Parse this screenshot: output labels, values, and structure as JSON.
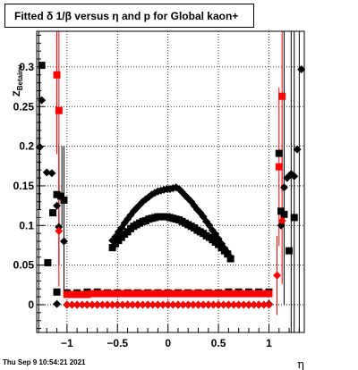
{
  "chart_data": {
    "type": "scatter",
    "title": "Fitted δ 1/β versus η and p for Global kaon+",
    "xlabel": "η",
    "ylabel": "Z_{Betainv}",
    "xlim": [
      -1.3,
      1.35
    ],
    "ylim": [
      -0.035,
      0.345
    ],
    "x_ticks": [
      -1,
      -0.5,
      0,
      0.5,
      1
    ],
    "x_tick_labels": [
      "−1",
      "−0.5",
      "0",
      "0.5",
      "1"
    ],
    "y_ticks": [
      0,
      0.05,
      0.1,
      0.15,
      0.2,
      0.25,
      0.3
    ],
    "y_tick_labels": [
      "0",
      "0.05",
      "0.1",
      "0.15",
      "0.2",
      "0.25",
      "0.3"
    ],
    "grid": true,
    "datestamp": "Thu Sep  9 10:54:21 2021",
    "series": [
      {
        "marker": "square",
        "color": "#000000",
        "points": [
          [
            -1.25,
            0.302
          ],
          [
            -1.19,
            0.053
          ],
          [
            -1.14,
            0.116
          ],
          [
            -1.1,
            0.139
          ],
          [
            -1.06,
            0.137
          ],
          [
            -1.03,
            0.132
          ],
          [
            -0.55,
            0.072
          ],
          [
            -0.52,
            0.077
          ],
          [
            -0.49,
            0.081
          ],
          [
            -0.46,
            0.085
          ],
          [
            -0.43,
            0.089
          ],
          [
            -0.4,
            0.092
          ],
          [
            -0.37,
            0.096
          ],
          [
            -0.34,
            0.099
          ],
          [
            -0.31,
            0.101
          ],
          [
            -0.28,
            0.103
          ],
          [
            -0.25,
            0.105
          ],
          [
            -0.22,
            0.106
          ],
          [
            -0.19,
            0.108
          ],
          [
            -0.16,
            0.109
          ],
          [
            -0.13,
            0.11
          ],
          [
            -0.1,
            0.111
          ],
          [
            -0.07,
            0.111
          ],
          [
            -0.04,
            0.111
          ],
          [
            -0.01,
            0.111
          ],
          [
            0.02,
            0.11
          ],
          [
            0.05,
            0.109
          ],
          [
            0.08,
            0.108
          ],
          [
            0.11,
            0.107
          ],
          [
            0.14,
            0.105
          ],
          [
            0.17,
            0.103
          ],
          [
            0.2,
            0.101
          ],
          [
            0.23,
            0.099
          ],
          [
            0.26,
            0.097
          ],
          [
            0.29,
            0.094
          ],
          [
            0.32,
            0.092
          ],
          [
            0.35,
            0.09
          ],
          [
            0.38,
            0.087
          ],
          [
            0.41,
            0.085
          ],
          [
            0.44,
            0.082
          ],
          [
            0.47,
            0.079
          ],
          [
            0.5,
            0.076
          ],
          [
            0.53,
            0.072
          ],
          [
            0.56,
            0.068
          ],
          [
            0.59,
            0.064
          ],
          [
            0.62,
            0.058
          ],
          [
            -1.1,
            0.016
          ],
          [
            -1.0,
            0.015
          ],
          [
            -0.9,
            0.015
          ],
          [
            -0.8,
            0.016
          ],
          [
            -0.7,
            0.016
          ],
          [
            -0.6,
            0.015
          ],
          [
            -0.5,
            0.015
          ],
          [
            -0.4,
            0.015
          ],
          [
            -0.3,
            0.015
          ],
          [
            -0.2,
            0.015
          ],
          [
            -0.1,
            0.015
          ],
          [
            0.0,
            0.015
          ],
          [
            0.1,
            0.015
          ],
          [
            0.2,
            0.015
          ],
          [
            0.3,
            0.015
          ],
          [
            0.4,
            0.015
          ],
          [
            0.5,
            0.015
          ],
          [
            0.6,
            0.016
          ],
          [
            0.7,
            0.016
          ],
          [
            0.8,
            0.016
          ],
          [
            0.9,
            0.016
          ],
          [
            1.0,
            0.016
          ],
          [
            1.1,
            0.191
          ],
          [
            1.15,
            0.114
          ],
          [
            1.2,
            0.068
          ],
          [
            1.25,
            0.11
          ],
          [
            1.12,
            0.118
          ]
        ]
      },
      {
        "marker": "diamond",
        "color": "#000000",
        "points": [
          [
            -1.27,
            0.199
          ],
          [
            -1.25,
            0.258
          ],
          [
            -1.2,
            0.167
          ],
          [
            -1.15,
            0.166
          ],
          [
            -1.1,
            0.125
          ],
          [
            -1.08,
            0.098
          ],
          [
            -1.03,
            0.08
          ],
          [
            -0.55,
            0.081
          ],
          [
            -0.52,
            0.086
          ],
          [
            -0.49,
            0.092
          ],
          [
            -0.46,
            0.097
          ],
          [
            -0.43,
            0.103
          ],
          [
            -0.4,
            0.108
          ],
          [
            -0.37,
            0.113
          ],
          [
            -0.34,
            0.118
          ],
          [
            -0.31,
            0.122
          ],
          [
            -0.28,
            0.126
          ],
          [
            -0.25,
            0.13
          ],
          [
            -0.22,
            0.133
          ],
          [
            -0.19,
            0.136
          ],
          [
            -0.16,
            0.139
          ],
          [
            -0.13,
            0.141
          ],
          [
            -0.1,
            0.143
          ],
          [
            -0.07,
            0.144
          ],
          [
            -0.04,
            0.145
          ],
          [
            -0.01,
            0.146
          ],
          [
            0.02,
            0.146
          ],
          [
            0.05,
            0.147
          ],
          [
            0.08,
            0.148
          ],
          [
            0.11,
            0.146
          ],
          [
            0.14,
            0.142
          ],
          [
            0.17,
            0.138
          ],
          [
            0.2,
            0.134
          ],
          [
            0.23,
            0.13
          ],
          [
            0.26,
            0.125
          ],
          [
            0.29,
            0.12
          ],
          [
            0.32,
            0.116
          ],
          [
            0.35,
            0.111
          ],
          [
            0.38,
            0.105
          ],
          [
            0.41,
            0.1
          ],
          [
            0.44,
            0.094
          ],
          [
            0.47,
            0.089
          ],
          [
            0.5,
            0.083
          ],
          [
            0.53,
            0.077
          ],
          [
            0.56,
            0.071
          ],
          [
            0.59,
            0.066
          ],
          [
            0.62,
            0.06
          ],
          [
            -1.1,
            0.001
          ],
          [
            -1.0,
            0.0
          ],
          [
            -0.9,
            0.0
          ],
          [
            -0.8,
            0.0
          ],
          [
            -0.7,
            0.0
          ],
          [
            -0.6,
            0.0
          ],
          [
            -0.5,
            0.0
          ],
          [
            -0.4,
            0.0
          ],
          [
            -0.3,
            0.0
          ],
          [
            -0.2,
            0.0
          ],
          [
            -0.1,
            0.0
          ],
          [
            0.0,
            0.0
          ],
          [
            0.1,
            0.0
          ],
          [
            0.2,
            0.0
          ],
          [
            0.3,
            0.0
          ],
          [
            0.4,
            0.0
          ],
          [
            0.5,
            0.0
          ],
          [
            0.6,
            0.0
          ],
          [
            0.7,
            0.0
          ],
          [
            0.8,
            0.0
          ],
          [
            0.9,
            0.0
          ],
          [
            1.0,
            0.001
          ],
          [
            1.15,
            0.148
          ],
          [
            1.18,
            0.16
          ],
          [
            1.22,
            0.165
          ],
          [
            1.25,
            0.162
          ],
          [
            1.28,
            0.196
          ],
          [
            1.32,
            0.297
          ],
          [
            1.12,
            0.1
          ]
        ]
      },
      {
        "marker": "square",
        "color": "#ff0000",
        "err_color": "#ff0000",
        "points": [
          [
            -1.1,
            0.29,
            0.1
          ],
          [
            -1.08,
            0.245,
            0.1
          ],
          [
            -1.0,
            0.013,
            0.002
          ],
          [
            -0.95,
            0.013,
            0.002
          ],
          [
            -0.9,
            0.013,
            0.002
          ],
          [
            -0.85,
            0.013,
            0.002
          ],
          [
            -0.8,
            0.013,
            0.002
          ],
          [
            -0.75,
            0.014,
            0.002
          ],
          [
            -0.7,
            0.014,
            0.002
          ],
          [
            -0.65,
            0.014,
            0.002
          ],
          [
            -0.6,
            0.014,
            0.002
          ],
          [
            -0.55,
            0.014,
            0.002
          ],
          [
            -0.5,
            0.014,
            0.002
          ],
          [
            -0.45,
            0.014,
            0.002
          ],
          [
            -0.4,
            0.014,
            0.002
          ],
          [
            -0.35,
            0.014,
            0.002
          ],
          [
            -0.3,
            0.014,
            0.002
          ],
          [
            -0.25,
            0.014,
            0.002
          ],
          [
            -0.2,
            0.014,
            0.002
          ],
          [
            -0.15,
            0.014,
            0.002
          ],
          [
            -0.1,
            0.014,
            0.002
          ],
          [
            -0.05,
            0.014,
            0.002
          ],
          [
            0.0,
            0.014,
            0.002
          ],
          [
            0.05,
            0.014,
            0.002
          ],
          [
            0.1,
            0.014,
            0.002
          ],
          [
            0.15,
            0.014,
            0.002
          ],
          [
            0.2,
            0.014,
            0.002
          ],
          [
            0.25,
            0.014,
            0.002
          ],
          [
            0.3,
            0.014,
            0.002
          ],
          [
            0.35,
            0.014,
            0.002
          ],
          [
            0.4,
            0.014,
            0.002
          ],
          [
            0.45,
            0.014,
            0.002
          ],
          [
            0.5,
            0.014,
            0.002
          ],
          [
            0.55,
            0.014,
            0.002
          ],
          [
            0.6,
            0.014,
            0.002
          ],
          [
            0.65,
            0.014,
            0.002
          ],
          [
            0.7,
            0.014,
            0.002
          ],
          [
            0.75,
            0.014,
            0.002
          ],
          [
            0.8,
            0.014,
            0.002
          ],
          [
            0.85,
            0.014,
            0.002
          ],
          [
            0.9,
            0.014,
            0.002
          ],
          [
            0.95,
            0.014,
            0.002
          ],
          [
            1.0,
            0.014,
            0.002
          ],
          [
            1.1,
            0.174,
            0.1
          ],
          [
            1.13,
            0.263,
            0.12
          ]
        ]
      },
      {
        "marker": "diamond",
        "color": "#ff0000",
        "err_color": "#ff0000",
        "points": [
          [
            -1.08,
            0.093,
            0.07
          ],
          [
            -1.0,
            0.0,
            0.002
          ],
          [
            -0.95,
            0.0,
            0.002
          ],
          [
            -0.9,
            0.0,
            0.002
          ],
          [
            -0.85,
            0.0,
            0.002
          ],
          [
            -0.8,
            0.0,
            0.002
          ],
          [
            -0.75,
            0.0,
            0.002
          ],
          [
            -0.7,
            0.0,
            0.002
          ],
          [
            -0.65,
            0.0,
            0.002
          ],
          [
            -0.6,
            0.0,
            0.002
          ],
          [
            -0.55,
            0.0,
            0.002
          ],
          [
            -0.5,
            0.0,
            0.002
          ],
          [
            -0.45,
            0.0,
            0.002
          ],
          [
            -0.4,
            0.0,
            0.002
          ],
          [
            -0.35,
            0.0,
            0.002
          ],
          [
            -0.3,
            0.0,
            0.002
          ],
          [
            -0.25,
            0.0,
            0.002
          ],
          [
            -0.2,
            0.0,
            0.002
          ],
          [
            -0.15,
            0.0,
            0.002
          ],
          [
            -0.1,
            0.0,
            0.002
          ],
          [
            -0.05,
            0.0,
            0.002
          ],
          [
            0.0,
            0.0,
            0.002
          ],
          [
            0.05,
            0.0,
            0.002
          ],
          [
            0.1,
            0.0,
            0.002
          ],
          [
            0.15,
            0.0,
            0.002
          ],
          [
            0.2,
            0.0,
            0.002
          ],
          [
            0.25,
            0.0,
            0.002
          ],
          [
            0.3,
            0.0,
            0.002
          ],
          [
            0.35,
            0.0,
            0.002
          ],
          [
            0.4,
            0.0,
            0.002
          ],
          [
            0.45,
            0.0,
            0.002
          ],
          [
            0.5,
            0.0,
            0.002
          ],
          [
            0.55,
            0.0,
            0.002
          ],
          [
            0.6,
            0.0,
            0.002
          ],
          [
            0.65,
            0.0,
            0.002
          ],
          [
            0.7,
            0.0,
            0.002
          ],
          [
            0.75,
            0.0,
            0.002
          ],
          [
            0.8,
            0.0,
            0.002
          ],
          [
            0.85,
            0.0,
            0.002
          ],
          [
            0.9,
            0.0,
            0.002
          ],
          [
            0.95,
            0.0,
            0.002
          ],
          [
            1.0,
            0.0,
            0.002
          ],
          [
            1.08,
            0.037,
            0.05
          ],
          [
            1.13,
            0.106,
            0.08
          ]
        ]
      }
    ],
    "outer_error_bars": [
      {
        "x": -1.28,
        "lo": -0.035,
        "hi": 0.345,
        "color": "#000000"
      },
      {
        "x": -1.27,
        "lo": 0.12,
        "hi": 0.3,
        "color": "#000000"
      },
      {
        "x": -1.08,
        "lo": 0.05,
        "hi": 0.2,
        "color": "#000000"
      },
      {
        "x": -1.05,
        "lo": 0.1,
        "hi": 0.2,
        "color": "#000000"
      },
      {
        "x": -1.03,
        "lo": 0.01,
        "hi": 0.2,
        "color": "#000000"
      },
      {
        "x": 1.15,
        "lo": 0.0,
        "hi": 0.345,
        "color": "#000000"
      },
      {
        "x": 1.22,
        "lo": -0.035,
        "hi": 0.345,
        "color": "#000000"
      },
      {
        "x": 1.25,
        "lo": -0.035,
        "hi": 0.345,
        "color": "#000000"
      },
      {
        "x": 1.3,
        "lo": -0.035,
        "hi": 0.345,
        "color": "#000000"
      }
    ]
  }
}
